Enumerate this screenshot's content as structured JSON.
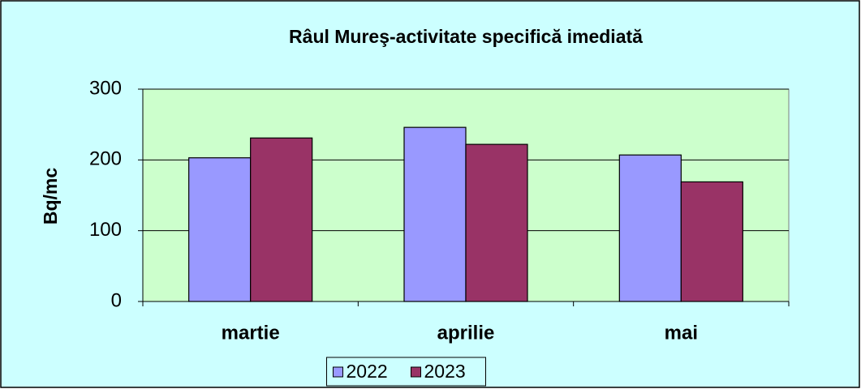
{
  "chart_data": {
    "type": "bar",
    "title": "Râul Mureş-activitate specifică imediată",
    "y_label": "Bq/mc",
    "categories": [
      "martie",
      "aprilie",
      "mai"
    ],
    "series": [
      {
        "name": "2022",
        "color": "#9999ff",
        "values": [
          203,
          246,
          207
        ]
      },
      {
        "name": "2023",
        "color": "#993366",
        "values": [
          231,
          222,
          169
        ]
      }
    ],
    "ylim": [
      0,
      300
    ],
    "yticks": [
      0,
      100,
      200,
      300
    ],
    "grid": true,
    "legend": "bottom"
  }
}
